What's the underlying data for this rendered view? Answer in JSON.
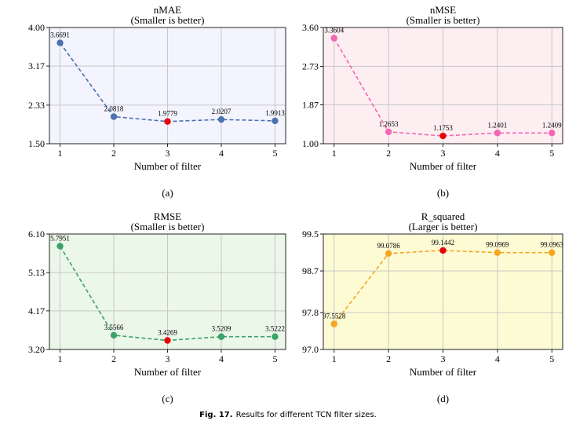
{
  "figure": {
    "caption_label": "Fig. 17.",
    "caption_text": "Results for different TCN filter sizes."
  },
  "colors": {
    "highlight": "#e8000b",
    "grid": "#c8c8c8"
  },
  "chart_data": [
    {
      "type": "line",
      "title": "nMAE",
      "subtitle": "(Smaller is better)",
      "panel_label": "(a)",
      "xlabel": "Number of filter",
      "ylabel": "",
      "x": [
        1,
        2,
        3,
        4,
        5
      ],
      "values": [
        3.6691,
        2.0818,
        1.9779,
        2.0207,
        1.9913
      ],
      "value_labels": [
        "3.6691",
        "2.0818",
        "1.9779",
        "2.0207",
        "1.9913"
      ],
      "best_index": 2,
      "ylim": [
        1.5,
        4.0
      ],
      "yticks": [
        1.5,
        2.33,
        3.17,
        4.0
      ],
      "ytick_labels": [
        "1.50",
        "2.33",
        "3.17",
        "4.00"
      ],
      "xtick_labels": [
        "1",
        "2",
        "3",
        "4",
        "5"
      ],
      "line_color": "#4c72b0",
      "bg_color": "#f3f4fd",
      "grid": true
    },
    {
      "type": "line",
      "title": "nMSE",
      "subtitle": "(Smaller is better)",
      "panel_label": "(b)",
      "xlabel": "Number of filter",
      "ylabel": "",
      "x": [
        1,
        2,
        3,
        4,
        5
      ],
      "values": [
        3.3604,
        1.2653,
        1.1753,
        1.2401,
        1.2409
      ],
      "value_labels": [
        "3.3604",
        "1.2653",
        "1.1753",
        "1.2401",
        "1.2409"
      ],
      "best_index": 2,
      "ylim": [
        1.0,
        3.6
      ],
      "yticks": [
        1.0,
        1.87,
        2.73,
        3.6
      ],
      "ytick_labels": [
        "1.00",
        "1.87",
        "2.73",
        "3.60"
      ],
      "xtick_labels": [
        "1",
        "2",
        "3",
        "4",
        "5"
      ],
      "line_color": "#f266b4",
      "bg_color": "#fdeef2",
      "grid": true
    },
    {
      "type": "line",
      "title": "RMSE",
      "subtitle": "(Smaller is better)",
      "panel_label": "(c)",
      "xlabel": "Number of filter",
      "ylabel": "",
      "x": [
        1,
        2,
        3,
        4,
        5
      ],
      "values": [
        5.7951,
        3.5566,
        3.4269,
        3.5209,
        3.5222
      ],
      "value_labels": [
        "5.7951",
        "3.5566",
        "3.4269",
        "3.5209",
        "3.5222"
      ],
      "best_index": 2,
      "ylim": [
        3.2,
        6.1
      ],
      "yticks": [
        3.2,
        4.17,
        5.13,
        6.1
      ],
      "ytick_labels": [
        "3.20",
        "4.17",
        "5.13",
        "6.10"
      ],
      "xtick_labels": [
        "1",
        "2",
        "3",
        "4",
        "5"
      ],
      "line_color": "#3aa36a",
      "bg_color": "#ebf7e8",
      "grid": true
    },
    {
      "type": "line",
      "title": "R_squared",
      "subtitle": "(Larger is better)",
      "panel_label": "(d)",
      "xlabel": "Number of filter",
      "ylabel": "",
      "x": [
        1,
        2,
        3,
        4,
        5
      ],
      "values": [
        97.5528,
        99.0786,
        99.1442,
        99.0969,
        99.0963
      ],
      "value_labels": [
        "97.5528",
        "99.0786",
        "99.1442",
        "99.0969",
        "99.0963"
      ],
      "best_index": 2,
      "ylim": [
        97.0,
        99.5
      ],
      "yticks": [
        97.0,
        97.8,
        98.7,
        99.5
      ],
      "ytick_labels": [
        "97.0",
        "97.8",
        "98.7",
        "99.5"
      ],
      "xtick_labels": [
        "1",
        "2",
        "3",
        "4",
        "5"
      ],
      "line_color": "#f5a623",
      "bg_color": "#fdfbd4",
      "grid": true
    }
  ]
}
